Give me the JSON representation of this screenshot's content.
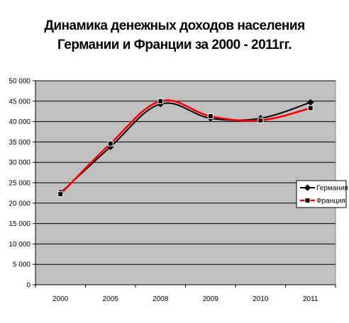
{
  "chart_data": {
    "type": "line",
    "title_lines": [
      "Динамика денежных доходов населения",
      "Германии и Франции за 2000 - 2011гг."
    ],
    "categories": [
      "2000",
      "2005",
      "2008",
      "2009",
      "2010",
      "2011"
    ],
    "y_ticks": [
      "0",
      "5 000",
      "10 000",
      "15 000",
      "20 000",
      "25 000",
      "30 000",
      "35 000",
      "40 000",
      "45 000",
      "50 000"
    ],
    "ylim": [
      0,
      50000
    ],
    "y_step": 5000,
    "grid": true,
    "plot_background": "#c0c0c0",
    "legend_position": "right",
    "series": [
      {
        "name": "Германия",
        "color": "#000000",
        "values": [
          22500,
          33800,
          44300,
          40800,
          40800,
          44700
        ]
      },
      {
        "name": "Франция",
        "color": "#ff0000",
        "values": [
          22200,
          34600,
          45000,
          41300,
          40300,
          43300
        ]
      }
    ]
  }
}
